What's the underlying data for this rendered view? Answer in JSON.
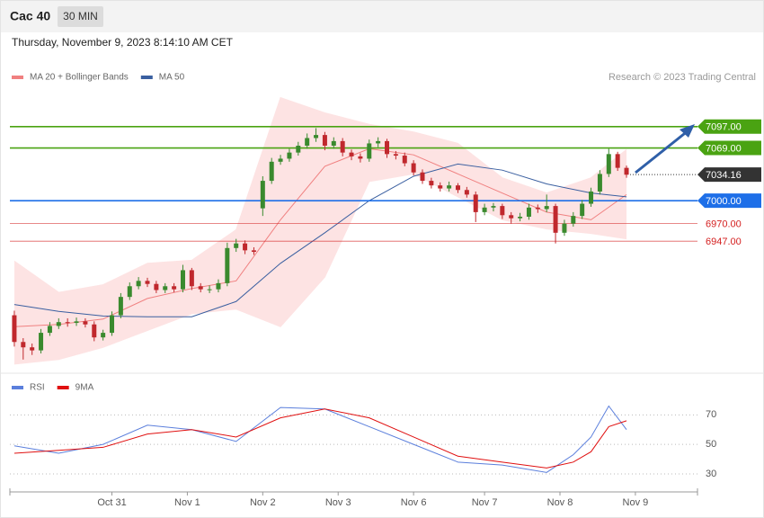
{
  "chart_data": [
    {
      "type": "candlestick",
      "title": "Cac 40",
      "interval": "30 MIN",
      "subtitle": "Thursday, November 9, 2023 8:14:10 AM CET",
      "source": "Research © 2023 Trading Central",
      "up_color": "#3a8a2e",
      "down_color": "#c0282d",
      "open": [
        6850,
        6815,
        6808,
        6804,
        6827,
        6836,
        6841,
        6840,
        6842,
        6838,
        6821,
        6827,
        6850,
        6874,
        6888,
        6895,
        6891,
        6883,
        6888,
        6884,
        6909,
        6888,
        6884,
        6884,
        6892,
        6938,
        6944,
        6935,
        6990,
        7026,
        7051,
        7055,
        7063,
        7072,
        7082,
        7086,
        7072,
        7078,
        7063,
        7058,
        7055,
        7075,
        7078,
        7061,
        7059,
        7049,
        7037,
        7026,
        7020,
        7016,
        7020,
        7014,
        7008,
        6985,
        6991,
        6993,
        6981,
        6977,
        6979,
        6991,
        6989,
        6993,
        6958,
        6970,
        6980,
        6996,
        7012,
        7035,
        7061,
        7043
      ],
      "high": [
        6856,
        6820,
        6813,
        6832,
        6841,
        6846,
        6846,
        6847,
        6846,
        6842,
        6831,
        6855,
        6879,
        6893,
        6900,
        6899,
        6895,
        6892,
        6892,
        6916,
        6912,
        6892,
        6889,
        6897,
        6945,
        6950,
        6948,
        6939,
        7032,
        7056,
        7060,
        7068,
        7077,
        7088,
        7095,
        7090,
        7083,
        7082,
        7067,
        7062,
        7080,
        7083,
        7081,
        7065,
        7063,
        7053,
        7041,
        7030,
        7024,
        7025,
        7023,
        7018,
        7012,
        6996,
        6997,
        6996,
        6985,
        6984,
        6996,
        6995,
        7008,
        6996,
        6975,
        6985,
        7001,
        7017,
        7040,
        7068,
        7064,
        7046
      ],
      "low": [
        6809,
        6792,
        6798,
        6800,
        6823,
        6832,
        6835,
        6836,
        6834,
        6816,
        6817,
        6823,
        6846,
        6870,
        6884,
        6887,
        6879,
        6879,
        6880,
        6880,
        6883,
        6880,
        6879,
        6880,
        6888,
        6933,
        6930,
        6929,
        6980,
        7022,
        7047,
        7051,
        7059,
        7068,
        7077,
        7066,
        7068,
        7058,
        7053,
        7050,
        7051,
        7070,
        7056,
        7054,
        7045,
        7033,
        7022,
        7016,
        7012,
        7012,
        7010,
        7004,
        6972,
        6981,
        6986,
        6976,
        6970,
        6973,
        6975,
        6984,
        6985,
        6944,
        6954,
        6966,
        6976,
        6992,
        7008,
        7031,
        7039,
        7030
      ],
      "close": [
        6815,
        6808,
        6804,
        6827,
        6836,
        6841,
        6840,
        6842,
        6838,
        6821,
        6827,
        6850,
        6874,
        6888,
        6895,
        6891,
        6883,
        6888,
        6884,
        6909,
        6888,
        6884,
        6884,
        6892,
        6938,
        6944,
        6935,
        6933,
        7026,
        7051,
        7055,
        7063,
        7072,
        7082,
        7086,
        7072,
        7078,
        7063,
        7058,
        7055,
        7075,
        7078,
        7061,
        7059,
        7049,
        7037,
        7026,
        7020,
        7016,
        7020,
        7014,
        7008,
        6985,
        6991,
        6993,
        6981,
        6977,
        6979,
        6991,
        6989,
        6993,
        6958,
        6970,
        6980,
        6996,
        7012,
        7035,
        7061,
        7043,
        7034
      ],
      "series": [
        {
          "name": "MA 20 + Bollinger Bands",
          "color": "#f08080",
          "band_color": "#fde3e3",
          "x": [
            0,
            5,
            10,
            15,
            20,
            25,
            30,
            35,
            40,
            45,
            50,
            55,
            60,
            65,
            69
          ],
          "values": [
            6835,
            6838,
            6845,
            6872,
            6885,
            6895,
            6975,
            7045,
            7068,
            7060,
            7035,
            7010,
            6985,
            6975,
            7008
          ],
          "upper": [
            6921,
            6880,
            6890,
            6918,
            6922,
            6962,
            7135,
            7115,
            7100,
            7090,
            7075,
            7030,
            7010,
            7030,
            7067
          ],
          "lower": [
            6786,
            6792,
            6808,
            6830,
            6852,
            6858,
            6835,
            6900,
            7025,
            7035,
            7005,
            6975,
            6963,
            6957,
            6950
          ]
        },
        {
          "name": "MA 50",
          "color": "#3a5fa0",
          "x": [
            0,
            5,
            10,
            15,
            20,
            25,
            30,
            35,
            40,
            45,
            50,
            55,
            60,
            65,
            69
          ],
          "values": [
            6864,
            6855,
            6849,
            6848,
            6848,
            6868,
            6918,
            6958,
            7000,
            7032,
            7048,
            7040,
            7022,
            7010,
            7005
          ]
        }
      ],
      "levels": [
        {
          "value": 7097,
          "label": "7097.00",
          "color": "#4aa312",
          "style": "box"
        },
        {
          "value": 7069,
          "label": "7069.00",
          "color": "#4aa312",
          "style": "box"
        },
        {
          "value": 7034.16,
          "label": "7034.16",
          "color": "#333333",
          "style": "dotted"
        },
        {
          "value": 7000,
          "label": "7000.00",
          "color": "#1e6fe8",
          "style": "box"
        },
        {
          "value": 6970,
          "label": "6970.00",
          "color": "#d42020",
          "style": "text"
        },
        {
          "value": 6947,
          "label": "6947.00",
          "color": "#d42020",
          "style": "text"
        }
      ],
      "xlim": [
        -0.5,
        77
      ],
      "ylim": [
        6780,
        7145
      ]
    },
    {
      "type": "line",
      "series": [
        {
          "name": "RSI",
          "color": "#5b7fdc",
          "x": [
            0,
            5,
            10,
            15,
            20,
            25,
            30,
            35,
            40,
            45,
            50,
            55,
            60,
            63,
            65,
            67,
            69
          ],
          "values": [
            49,
            44,
            50,
            63,
            60,
            52,
            75,
            74,
            62,
            50,
            38,
            36,
            31,
            43,
            55,
            76,
            60
          ]
        },
        {
          "name": "9MA",
          "color": "#e01010",
          "x": [
            0,
            5,
            10,
            15,
            20,
            25,
            30,
            35,
            40,
            45,
            50,
            55,
            60,
            63,
            65,
            67,
            69
          ],
          "values": [
            44,
            46,
            48,
            57,
            60,
            55,
            68,
            74,
            68,
            55,
            42,
            38,
            34,
            38,
            45,
            62,
            66
          ]
        }
      ],
      "xlim": [
        -0.5,
        77
      ],
      "ylim": [
        19,
        83
      ],
      "yticks": [
        30,
        50,
        70
      ],
      "xticks": [
        {
          "value": 11,
          "label": "Oct 31"
        },
        {
          "value": 19.5,
          "label": "Nov 1"
        },
        {
          "value": 28,
          "label": "Nov 2"
        },
        {
          "value": 36.5,
          "label": "Nov 3"
        },
        {
          "value": 45,
          "label": "Nov 6"
        },
        {
          "value": 53,
          "label": "Nov 7"
        },
        {
          "value": 61.5,
          "label": "Nov 8"
        },
        {
          "value": 70,
          "label": "Nov 9"
        }
      ]
    }
  ]
}
